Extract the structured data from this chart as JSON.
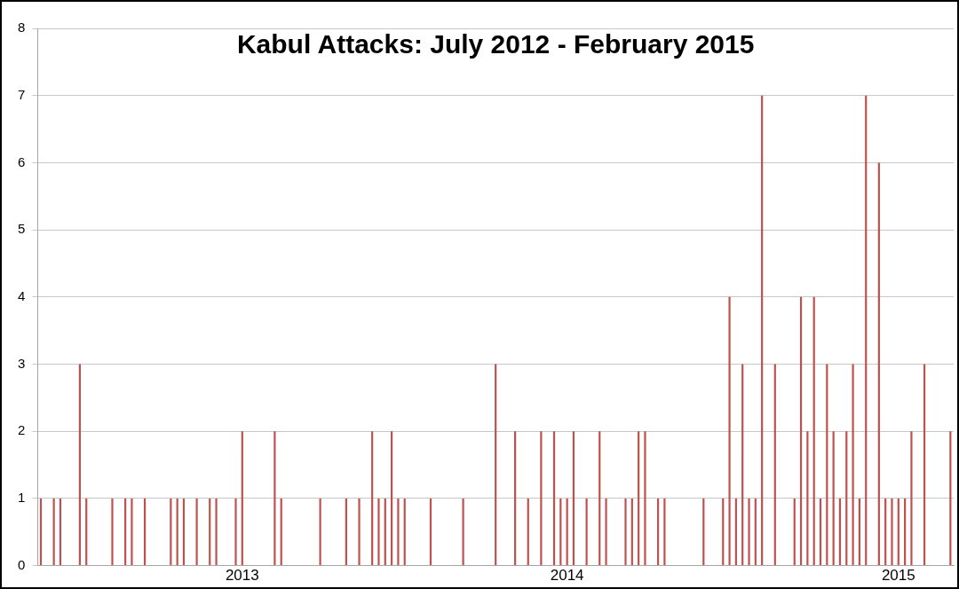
{
  "chart_data": {
    "type": "bar",
    "title": "Kabul Attacks: July 2012 - February 2015",
    "categories": [
      null,
      null,
      null,
      null,
      null,
      null,
      null,
      null,
      null,
      null,
      null,
      null,
      null,
      null,
      null,
      null,
      null,
      null,
      null,
      null,
      null,
      null,
      null,
      null,
      null,
      null,
      null,
      null,
      null,
      null,
      null,
      "2013",
      null,
      null,
      null,
      null,
      null,
      null,
      null,
      null,
      null,
      null,
      null,
      null,
      null,
      null,
      null,
      null,
      null,
      null,
      null,
      null,
      null,
      null,
      null,
      null,
      null,
      null,
      null,
      null,
      null,
      null,
      null,
      null,
      null,
      null,
      null,
      null,
      null,
      null,
      null,
      null,
      null,
      null,
      null,
      null,
      null,
      null,
      null,
      null,
      null,
      "2014",
      null,
      null,
      null,
      null,
      null,
      null,
      null,
      null,
      null,
      null,
      null,
      null,
      null,
      null,
      null,
      null,
      null,
      null,
      null,
      null,
      null,
      null,
      null,
      null,
      null,
      null,
      null,
      null,
      null,
      null,
      null,
      null,
      null,
      null,
      null,
      null,
      null,
      null,
      null,
      null,
      null,
      null,
      null,
      null,
      null,
      null,
      null,
      null,
      null,
      null,
      "2015",
      null,
      null,
      null,
      null,
      null,
      null,
      null,
      null
    ],
    "values": [
      1,
      0,
      1,
      1,
      0,
      0,
      3,
      1,
      0,
      0,
      0,
      1,
      0,
      1,
      1,
      0,
      1,
      0,
      0,
      0,
      1,
      1,
      1,
      0,
      1,
      0,
      1,
      1,
      0,
      0,
      1,
      2,
      0,
      0,
      0,
      0,
      2,
      1,
      0,
      0,
      0,
      0,
      0,
      1,
      0,
      0,
      0,
      1,
      0,
      1,
      0,
      2,
      1,
      1,
      2,
      1,
      1,
      0,
      0,
      0,
      1,
      0,
      0,
      0,
      0,
      1,
      0,
      0,
      0,
      0,
      3,
      0,
      0,
      2,
      0,
      1,
      0,
      2,
      0,
      2,
      1,
      1,
      2,
      0,
      1,
      0,
      2,
      1,
      0,
      0,
      1,
      1,
      2,
      2,
      0,
      1,
      1,
      0,
      0,
      0,
      0,
      0,
      1,
      0,
      0,
      1,
      4,
      1,
      3,
      1,
      1,
      7,
      0,
      3,
      0,
      0,
      1,
      4,
      2,
      4,
      1,
      3,
      2,
      1,
      2,
      3,
      1,
      7,
      0,
      6,
      1,
      1,
      1,
      1,
      2,
      0,
      3,
      0,
      0,
      0,
      2
    ],
    "color": "#c0504d",
    "ylim": [
      0,
      8
    ],
    "yticks": [
      0,
      1,
      2,
      3,
      4,
      5,
      6,
      7,
      8
    ],
    "grid": "y",
    "legend": false
  }
}
